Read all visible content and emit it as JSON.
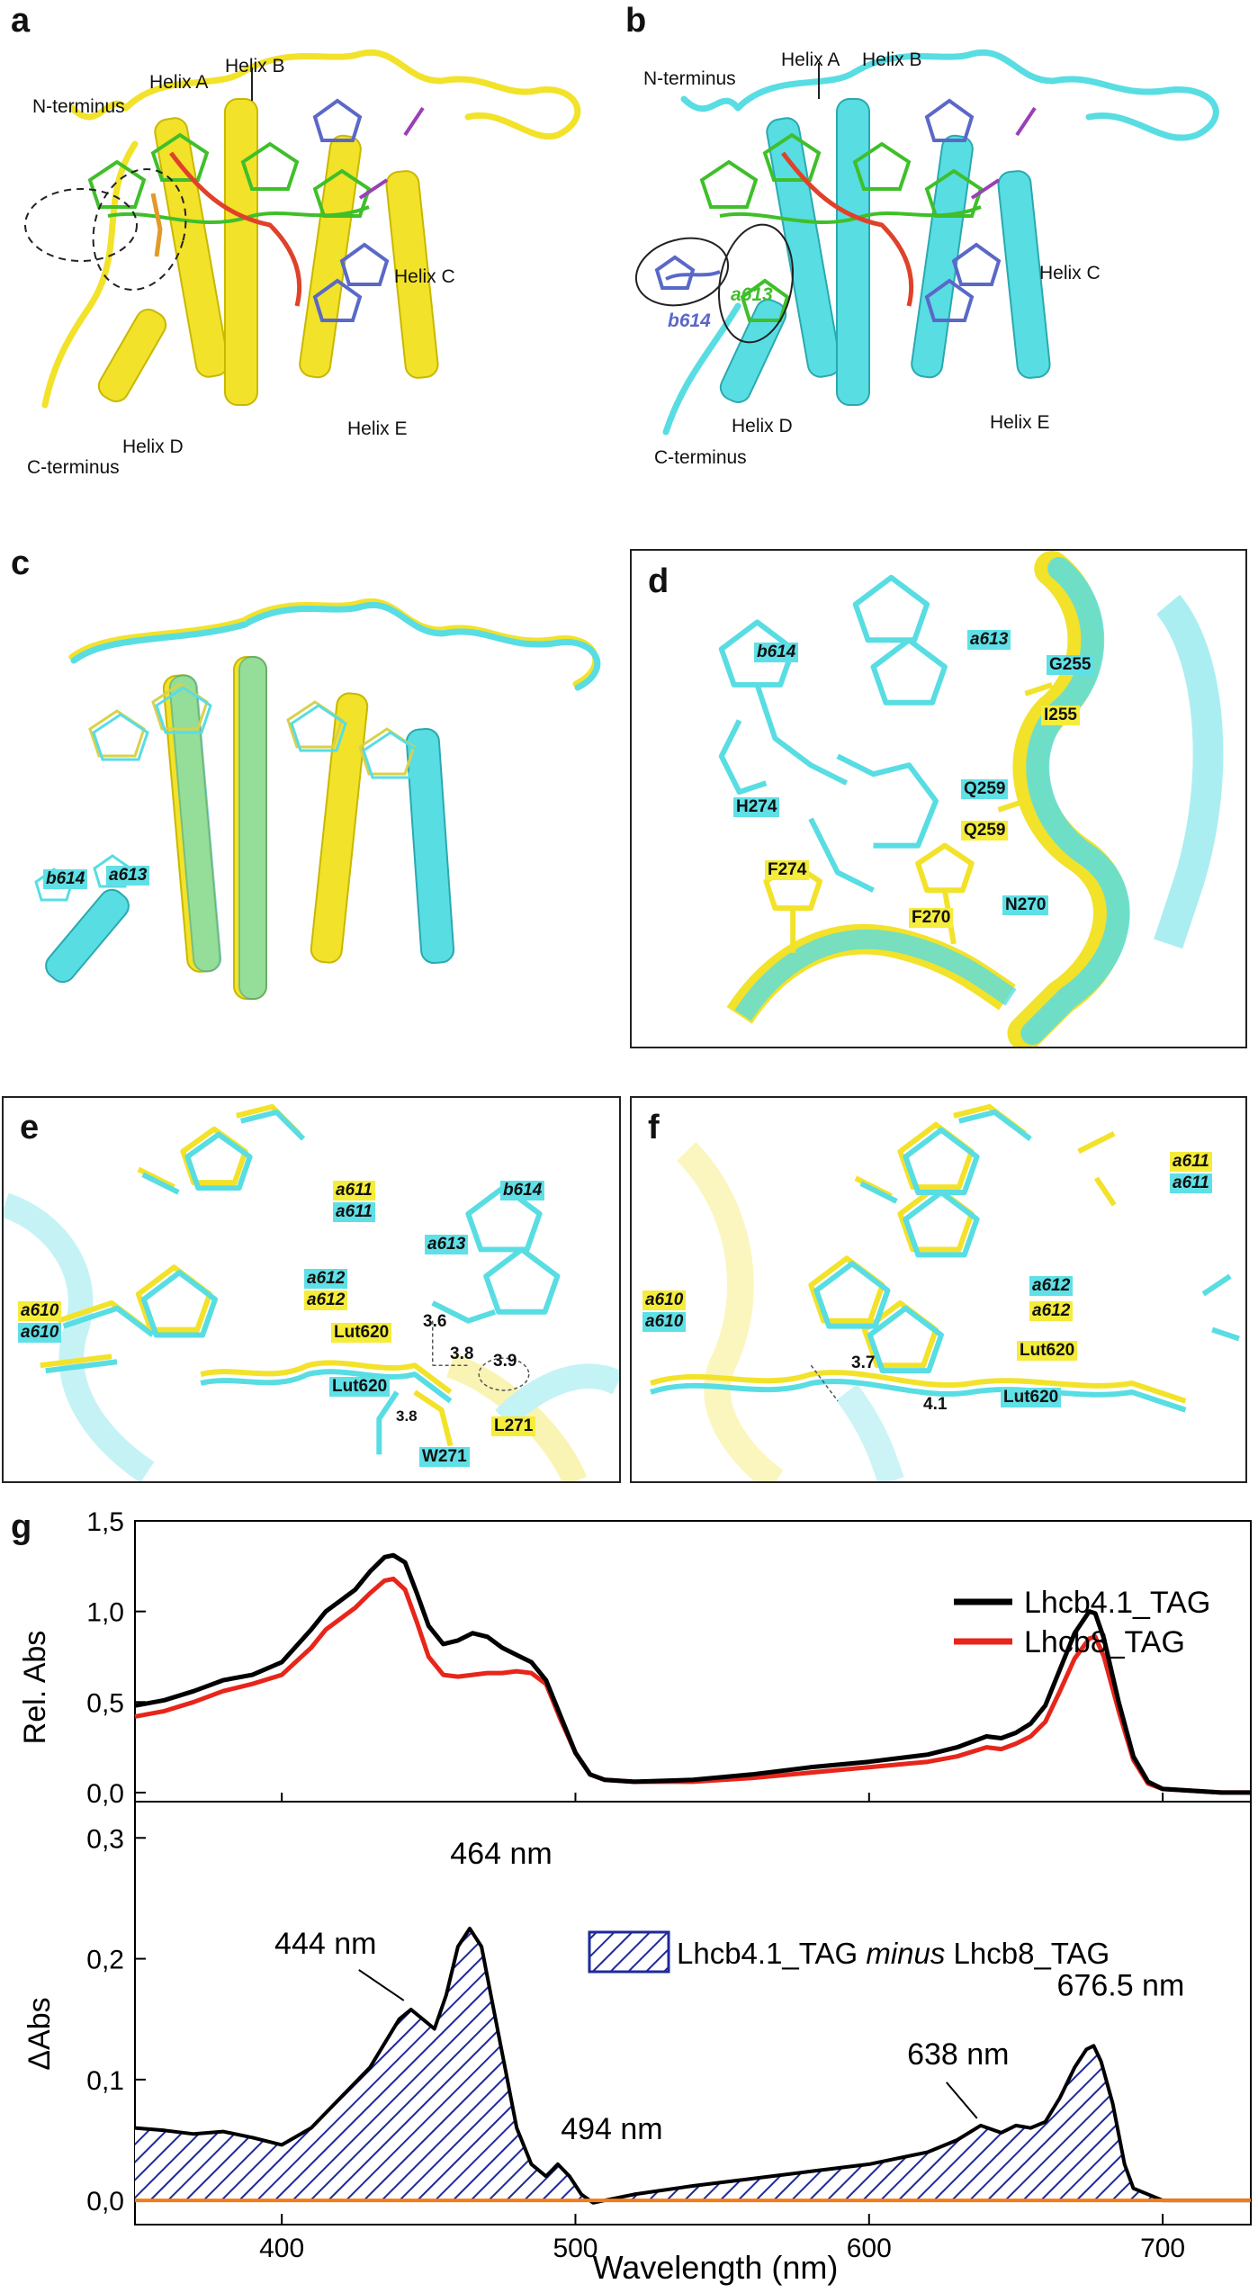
{
  "panels": {
    "a": {
      "letter": "a",
      "labels": {
        "n_terminus": "N-terminus",
        "helix_a": "Helix A",
        "helix_b": "Helix B",
        "helix_c": "Helix C",
        "helix_d": "Helix D",
        "helix_e": "Helix E",
        "c_terminus": "C-terminus"
      }
    },
    "b": {
      "letter": "b",
      "labels": {
        "n_terminus": "N-terminus",
        "helix_a": "Helix A",
        "helix_b": "Helix B",
        "helix_c": "Helix C",
        "helix_d": "Helix D",
        "helix_e": "Helix E",
        "c_terminus": "C-terminus",
        "b614": "b614",
        "a613": "a613"
      }
    },
    "c": {
      "letter": "c",
      "labels": {
        "b614": "b614",
        "a613": "a613"
      }
    },
    "d": {
      "letter": "d",
      "labels": {
        "b614": "b614",
        "a613": "a613",
        "g255": "G255",
        "i255": "I255",
        "h274": "H274",
        "q259_c": "Q259",
        "q259_y": "Q259",
        "f274": "F274",
        "f270": "F270",
        "n270": "N270"
      }
    },
    "e": {
      "letter": "e",
      "labels": {
        "a611_y": "a611",
        "a611_c": "a611",
        "b614": "b614",
        "a613": "a613",
        "a612_y": "a612",
        "a612_c": "a612",
        "a610_y": "a610",
        "a610_c": "a610",
        "lut620_y": "Lut620",
        "lut620_c": "Lut620",
        "w271": "W271",
        "l271": "L271",
        "d36": "3.6",
        "d38a": "3.8",
        "d39": "3.9",
        "d38b": "3.8"
      }
    },
    "f": {
      "letter": "f",
      "labels": {
        "a611_y": "a611",
        "a611_c": "a611",
        "a612_c": "a612",
        "a612_y": "a612",
        "a610_y": "a610",
        "a610_c": "a610",
        "lut620_y": "Lut620",
        "lut620_c": "Lut620",
        "d37": "3.7",
        "d41": "4.1"
      }
    },
    "g": {
      "letter": "g"
    }
  },
  "colors": {
    "yellow_model": "#f2e22a",
    "cyan_model": "#58dde3",
    "chl_a_green": "#3fbf2a",
    "chl_b_blue": "#5a68c8",
    "carotenoid_red": "#e0412a",
    "lhcb41": "#000000",
    "lhcb8": "#e8251a",
    "diff_fill": "#1e2a9a",
    "zero_line": "#f07d1a"
  },
  "chart_data": [
    {
      "type": "line",
      "panel": "g-top",
      "xlabel": "",
      "ylabel": "Rel. Abs",
      "xlim": [
        350,
        730
      ],
      "ylim": [
        -0.05,
        1.5
      ],
      "y_ticks": [
        "0,0",
        "0,5",
        "1,0",
        "1,5"
      ],
      "y_tick_values": [
        0,
        0.5,
        1.0,
        1.5
      ],
      "legend_position": "top-right",
      "series": [
        {
          "name": "Lhcb4.1_TAG",
          "x": [
            350,
            360,
            370,
            380,
            390,
            400,
            410,
            415,
            420,
            425,
            430,
            435,
            438,
            442,
            446,
            450,
            455,
            460,
            465,
            470,
            475,
            480,
            485,
            490,
            495,
            500,
            505,
            510,
            520,
            540,
            560,
            580,
            600,
            620,
            630,
            640,
            645,
            650,
            655,
            660,
            665,
            670,
            675,
            677,
            680,
            685,
            690,
            695,
            700,
            710,
            720,
            730
          ],
          "y": [
            0.48,
            0.51,
            0.56,
            0.62,
            0.65,
            0.72,
            0.9,
            1.0,
            1.06,
            1.12,
            1.22,
            1.3,
            1.31,
            1.27,
            1.1,
            0.92,
            0.82,
            0.84,
            0.88,
            0.86,
            0.8,
            0.76,
            0.72,
            0.62,
            0.42,
            0.22,
            0.1,
            0.07,
            0.06,
            0.07,
            0.1,
            0.14,
            0.17,
            0.21,
            0.25,
            0.31,
            0.3,
            0.33,
            0.38,
            0.48,
            0.68,
            0.88,
            1.0,
            0.99,
            0.85,
            0.5,
            0.2,
            0.06,
            0.02,
            0.01,
            0.0,
            0.0
          ]
        },
        {
          "name": "Lhcb8_TAG",
          "x": [
            350,
            360,
            370,
            380,
            390,
            400,
            410,
            415,
            420,
            425,
            430,
            435,
            438,
            442,
            446,
            450,
            455,
            460,
            465,
            470,
            475,
            480,
            485,
            490,
            495,
            500,
            505,
            510,
            520,
            540,
            560,
            580,
            600,
            620,
            630,
            640,
            645,
            650,
            655,
            660,
            665,
            670,
            675,
            677,
            680,
            685,
            690,
            695,
            700,
            710,
            720,
            730
          ],
          "y": [
            0.42,
            0.45,
            0.5,
            0.56,
            0.6,
            0.65,
            0.8,
            0.9,
            0.96,
            1.02,
            1.1,
            1.17,
            1.18,
            1.12,
            0.94,
            0.75,
            0.65,
            0.64,
            0.65,
            0.66,
            0.66,
            0.67,
            0.66,
            0.6,
            0.4,
            0.22,
            0.1,
            0.07,
            0.06,
            0.06,
            0.08,
            0.11,
            0.14,
            0.17,
            0.2,
            0.25,
            0.24,
            0.27,
            0.31,
            0.39,
            0.56,
            0.74,
            0.85,
            0.86,
            0.75,
            0.45,
            0.18,
            0.05,
            0.02,
            0.01,
            0.0,
            0.0
          ]
        }
      ]
    },
    {
      "type": "area",
      "panel": "g-bottom",
      "xlabel": "Wavelength (nm)",
      "ylabel": "ΔAbs",
      "xlim": [
        350,
        730
      ],
      "ylim": [
        -0.02,
        0.33
      ],
      "x_ticks": [
        "400",
        "500",
        "600",
        "700"
      ],
      "x_tick_values": [
        400,
        500,
        600,
        700
      ],
      "y_ticks": [
        "0,0",
        "0,1",
        "0,2",
        "0,3"
      ],
      "y_tick_values": [
        0,
        0.1,
        0.2,
        0.3
      ],
      "legend_position": "top-right",
      "legend_parts": [
        "Lhcb4.1_TAG ",
        "minus",
        " Lhcb8_TAG"
      ],
      "series": [
        {
          "name": "Lhcb4.1_TAG minus Lhcb8_TAG",
          "x": [
            350,
            360,
            370,
            380,
            390,
            400,
            410,
            420,
            430,
            440,
            444,
            448,
            452,
            456,
            460,
            464,
            468,
            472,
            476,
            480,
            485,
            490,
            494,
            498,
            502,
            506,
            510,
            520,
            540,
            560,
            580,
            600,
            620,
            630,
            638,
            645,
            650,
            655,
            660,
            665,
            670,
            674,
            676.5,
            679,
            683,
            687,
            690,
            700,
            710,
            720,
            730
          ],
          "y": [
            0.06,
            0.058,
            0.055,
            0.057,
            0.052,
            0.046,
            0.06,
            0.085,
            0.11,
            0.15,
            0.158,
            0.15,
            0.142,
            0.17,
            0.21,
            0.225,
            0.21,
            0.16,
            0.11,
            0.06,
            0.03,
            0.02,
            0.03,
            0.02,
            0.005,
            -0.002,
            0.0,
            0.005,
            0.012,
            0.018,
            0.024,
            0.03,
            0.04,
            0.05,
            0.062,
            0.056,
            0.062,
            0.06,
            0.065,
            0.085,
            0.11,
            0.125,
            0.128,
            0.115,
            0.08,
            0.03,
            0.01,
            0.0,
            0.0,
            0.0,
            0.0
          ]
        }
      ],
      "annotations": [
        {
          "text": "444 nm",
          "x": 444,
          "y": 0.158
        },
        {
          "text": "464 nm",
          "x": 464,
          "y": 0.225
        },
        {
          "text": "494 nm",
          "x": 494,
          "y": 0.03
        },
        {
          "text": "638 nm",
          "x": 638,
          "y": 0.062
        },
        {
          "text": "676.5 nm",
          "x": 676.5,
          "y": 0.128
        }
      ]
    }
  ]
}
